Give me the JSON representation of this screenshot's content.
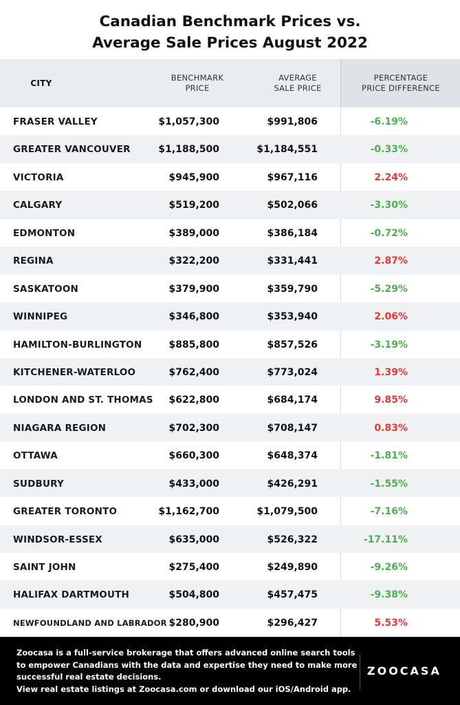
{
  "title_lines": [
    "Canadian Benchmark Prices vs.",
    "Average Sale Prices August 2022"
  ],
  "header": {
    "city": "CITY",
    "benchmark": [
      "BENCHMARK",
      "PRICE"
    ],
    "average": [
      "AVERAGE",
      "SALE PRICE"
    ],
    "percentage": [
      "PERCENTAGE",
      "PRICE DIFFERENCE"
    ]
  },
  "colors": {
    "negative": "#4caf50",
    "positive": "#e53935",
    "header_bg": "#eaedf0",
    "footer_bg": "#000000"
  },
  "chart_data": {
    "type": "table",
    "title": "Canadian Benchmark Prices vs. Average Sale Prices August 2022",
    "columns": [
      "CITY",
      "BENCHMARK PRICE",
      "AVERAGE SALE PRICE",
      "PERCENTAGE PRICE DIFFERENCE"
    ],
    "rows": [
      {
        "city": "FRASER VALLEY",
        "benchmark": "$1,057,300",
        "average": "$991,806",
        "pct": "-6.19%",
        "pct_value": -6.19
      },
      {
        "city": "GREATER VANCOUVER",
        "benchmark": "$1,188,500",
        "average": "$1,184,551",
        "pct": "-0.33%",
        "pct_value": -0.33
      },
      {
        "city": "VICTORIA",
        "benchmark": "$945,900",
        "average": "$967,116",
        "pct": "2.24%",
        "pct_value": 2.24
      },
      {
        "city": "CALGARY",
        "benchmark": "$519,200",
        "average": "$502,066",
        "pct": "-3.30%",
        "pct_value": -3.3
      },
      {
        "city": "EDMONTON",
        "benchmark": "$389,000",
        "average": "$386,184",
        "pct": "-0.72%",
        "pct_value": -0.72
      },
      {
        "city": "REGINA",
        "benchmark": "$322,200",
        "average": "$331,441",
        "pct": "2.87%",
        "pct_value": 2.87
      },
      {
        "city": "SASKATOON",
        "benchmark": "$379,900",
        "average": "$359,790",
        "pct": "-5.29%",
        "pct_value": -5.29
      },
      {
        "city": "WINNIPEG",
        "benchmark": "$346,800",
        "average": "$353,940",
        "pct": "2.06%",
        "pct_value": 2.06
      },
      {
        "city": "HAMILTON-BURLINGTON",
        "benchmark": "$885,800",
        "average": "$857,526",
        "pct": "-3.19%",
        "pct_value": -3.19
      },
      {
        "city": "KITCHENER-WATERLOO",
        "benchmark": "$762,400",
        "average": "$773,024",
        "pct": "1.39%",
        "pct_value": 1.39
      },
      {
        "city": "LONDON AND ST. THOMAS",
        "benchmark": "$622,800",
        "average": "$684,174",
        "pct": "9.85%",
        "pct_value": 9.85
      },
      {
        "city": "NIAGARA REGION",
        "benchmark": "$702,300",
        "average": "$708,147",
        "pct": "0.83%",
        "pct_value": 0.83
      },
      {
        "city": "OTTAWA",
        "benchmark": "$660,300",
        "average": "$648,374",
        "pct": "-1.81%",
        "pct_value": -1.81
      },
      {
        "city": "SUDBURY",
        "benchmark": "$433,000",
        "average": "$426,291",
        "pct": "-1.55%",
        "pct_value": -1.55
      },
      {
        "city": "GREATER TORONTO",
        "benchmark": "$1,162,700",
        "average": "$1,079,500",
        "pct": "-7.16%",
        "pct_value": -7.16
      },
      {
        "city": "WINDSOR-ESSEX",
        "benchmark": "$635,000",
        "average": "$526,322",
        "pct": "-17.11%",
        "pct_value": -17.11
      },
      {
        "city": "SAINT JOHN",
        "benchmark": "$275,400",
        "average": "$249,890",
        "pct": "-9.26%",
        "pct_value": -9.26
      },
      {
        "city": "HALIFAX DARTMOUTH",
        "benchmark": "$504,800",
        "average": "$457,475",
        "pct": "-9.38%",
        "pct_value": -9.38
      },
      {
        "city": "NEWFOUNDLAND AND LABRADOR",
        "benchmark": "$280,900",
        "average": "$296,427",
        "pct": "5.53%",
        "pct_value": 5.53
      }
    ]
  },
  "footer": {
    "lines": [
      "Zoocasa is a full-service brokerage that offers advanced online search tools",
      "to empower Canadians with the data and expertise they need to make more",
      "successful real estate decisions.",
      "View real estate listings at Zoocasa.com or download our iOS/Android app."
    ],
    "logo": "ZOOCASA"
  }
}
